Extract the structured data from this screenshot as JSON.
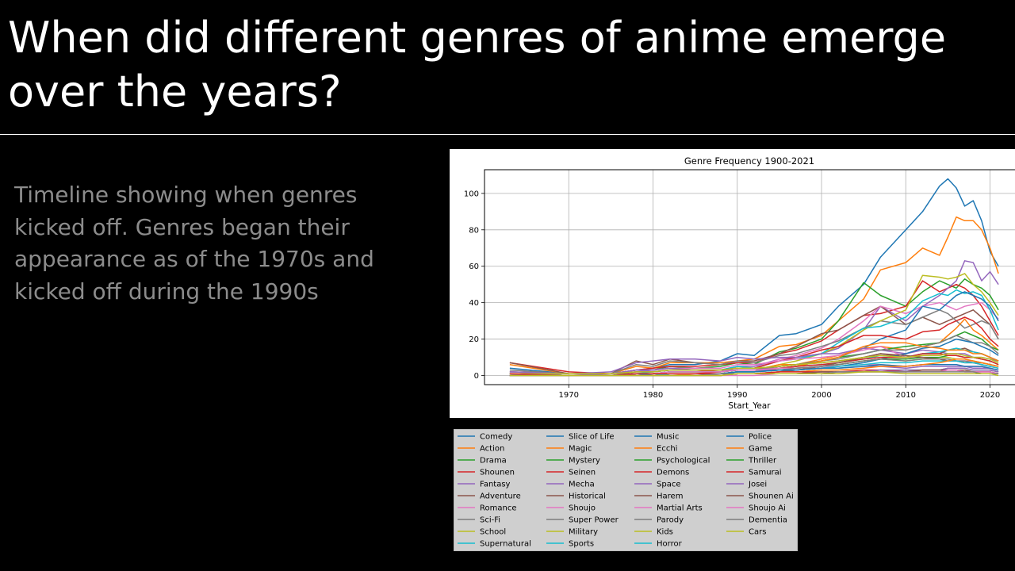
{
  "slide": {
    "title": "When did different genres of anime emerge over the years?",
    "description": "Timeline showing when genres kicked off. Genres began their appearance as of the 1970s and kicked off during the 1990s"
  },
  "chart_data": {
    "type": "line",
    "title": "Genre Frequency 1900-2021",
    "xlabel": "Start_Year",
    "ylabel": "",
    "xlim": [
      1960,
      2024
    ],
    "ylim": [
      -5,
      113
    ],
    "xticks": [
      1970,
      1980,
      1990,
      2000,
      2010,
      2020
    ],
    "yticks": [
      0,
      20,
      40,
      60,
      80,
      100
    ],
    "grid": true,
    "legend_position": "below",
    "legend_columns": 4,
    "x": [
      1963,
      1970,
      1975,
      1978,
      1980,
      1982,
      1985,
      1988,
      1990,
      1992,
      1995,
      1997,
      2000,
      2002,
      2005,
      2007,
      2010,
      2012,
      2014,
      2015,
      2016,
      2017,
      2018,
      2019,
      2020,
      2021
    ],
    "series": [
      {
        "name": "Comedy",
        "color": "#1f77b4",
        "values": [
          4,
          1,
          1,
          3,
          4,
          6,
          6,
          8,
          12,
          11,
          22,
          23,
          28,
          38,
          50,
          65,
          80,
          90,
          104,
          108,
          103,
          93,
          96,
          85,
          68,
          60
        ]
      },
      {
        "name": "Action",
        "color": "#ff7f0e",
        "values": [
          6,
          1,
          1,
          5,
          4,
          7,
          7,
          7,
          8,
          9,
          16,
          17,
          22,
          30,
          42,
          58,
          62,
          70,
          66,
          76,
          87,
          85,
          85,
          80,
          70,
          56
        ]
      },
      {
        "name": "Drama",
        "color": "#2ca02c",
        "values": [
          2,
          1,
          1,
          3,
          3,
          5,
          4,
          5,
          7,
          6,
          13,
          15,
          20,
          30,
          51,
          44,
          38,
          46,
          52,
          50,
          48,
          53,
          50,
          48,
          44,
          36
        ]
      },
      {
        "name": "Shounen",
        "color": "#d62728",
        "values": [
          7,
          2,
          1,
          3,
          4,
          5,
          5,
          6,
          7,
          7,
          12,
          14,
          19,
          25,
          33,
          34,
          38,
          52,
          46,
          48,
          50,
          48,
          44,
          38,
          30,
          22
        ]
      },
      {
        "name": "Fantasy",
        "color": "#9467bd",
        "values": [
          2,
          1,
          1,
          2,
          3,
          4,
          3,
          3,
          5,
          5,
          9,
          10,
          12,
          15,
          25,
          38,
          30,
          38,
          44,
          48,
          52,
          63,
          62,
          52,
          57,
          50
        ]
      },
      {
        "name": "Adventure",
        "color": "#8c564b",
        "values": [
          7,
          1,
          1,
          8,
          6,
          9,
          7,
          6,
          8,
          8,
          12,
          16,
          23,
          25,
          33,
          38,
          28,
          32,
          28,
          30,
          32,
          34,
          36,
          32,
          28,
          20
        ]
      },
      {
        "name": "Romance",
        "color": "#e377c2",
        "values": [
          2,
          1,
          1,
          2,
          2,
          3,
          3,
          3,
          4,
          4,
          9,
          11,
          15,
          20,
          30,
          38,
          34,
          38,
          40,
          38,
          36,
          38,
          39,
          40,
          36,
          31
        ]
      },
      {
        "name": "Sci-Fi",
        "color": "#7f7f7f",
        "values": [
          3,
          1,
          1,
          6,
          5,
          8,
          7,
          6,
          8,
          7,
          11,
          12,
          16,
          19,
          26,
          30,
          28,
          32,
          36,
          34,
          30,
          26,
          28,
          30,
          28,
          20
        ]
      },
      {
        "name": "School",
        "color": "#bcbd22",
        "values": [
          1,
          0,
          0,
          1,
          1,
          2,
          2,
          2,
          3,
          3,
          6,
          8,
          12,
          16,
          25,
          30,
          36,
          55,
          54,
          53,
          54,
          56,
          50,
          46,
          40,
          33
        ]
      },
      {
        "name": "Supernatural",
        "color": "#17becf",
        "values": [
          1,
          0,
          0,
          1,
          2,
          3,
          3,
          3,
          5,
          4,
          8,
          9,
          12,
          18,
          26,
          27,
          32,
          41,
          45,
          44,
          47,
          45,
          46,
          44,
          36,
          25
        ]
      },
      {
        "name": "Slice of Life",
        "color": "#1f77b4",
        "values": [
          1,
          0,
          0,
          1,
          1,
          1,
          1,
          1,
          2,
          2,
          4,
          5,
          8,
          10,
          15,
          20,
          25,
          38,
          36,
          40,
          44,
          46,
          44,
          42,
          38,
          30
        ]
      },
      {
        "name": "Magic",
        "color": "#ff7f0e",
        "values": [
          1,
          0,
          0,
          1,
          1,
          2,
          2,
          2,
          3,
          3,
          6,
          6,
          9,
          11,
          15,
          16,
          14,
          16,
          18,
          22,
          26,
          31,
          25,
          22,
          18,
          14
        ]
      },
      {
        "name": "Mystery",
        "color": "#2ca02c",
        "values": [
          1,
          0,
          0,
          1,
          1,
          2,
          2,
          2,
          3,
          3,
          5,
          6,
          8,
          10,
          12,
          14,
          16,
          17,
          18,
          20,
          22,
          24,
          22,
          20,
          16,
          14
        ]
      },
      {
        "name": "Seinen",
        "color": "#d62728",
        "values": [
          0,
          0,
          0,
          1,
          1,
          2,
          2,
          3,
          4,
          4,
          8,
          10,
          14,
          16,
          22,
          22,
          20,
          24,
          25,
          28,
          30,
          32,
          30,
          26,
          20,
          16
        ]
      },
      {
        "name": "Mecha",
        "color": "#9467bd",
        "values": [
          2,
          1,
          2,
          7,
          8,
          9,
          9,
          8,
          10,
          9,
          10,
          10,
          12,
          12,
          15,
          14,
          12,
          14,
          13,
          12,
          12,
          12,
          10,
          10,
          9,
          8
        ]
      },
      {
        "name": "Historical",
        "color": "#8c564b",
        "values": [
          1,
          0,
          0,
          2,
          2,
          3,
          3,
          3,
          4,
          4,
          5,
          6,
          7,
          8,
          10,
          12,
          10,
          12,
          12,
          14,
          14,
          15,
          13,
          12,
          10,
          8
        ]
      },
      {
        "name": "Shoujo",
        "color": "#e377c2",
        "values": [
          1,
          0,
          1,
          3,
          3,
          4,
          4,
          4,
          6,
          6,
          8,
          9,
          10,
          11,
          14,
          16,
          10,
          10,
          9,
          9,
          8,
          8,
          8,
          7,
          6,
          5
        ]
      },
      {
        "name": "Super Power",
        "color": "#7f7f7f",
        "values": [
          1,
          0,
          0,
          1,
          1,
          2,
          2,
          2,
          3,
          3,
          5,
          6,
          8,
          9,
          12,
          14,
          14,
          16,
          18,
          20,
          22,
          20,
          18,
          18,
          16,
          12
        ]
      },
      {
        "name": "Military",
        "color": "#bcbd22",
        "values": [
          1,
          0,
          0,
          1,
          1,
          2,
          2,
          2,
          3,
          3,
          4,
          4,
          5,
          6,
          8,
          9,
          8,
          9,
          10,
          10,
          9,
          9,
          8,
          7,
          6,
          5
        ]
      },
      {
        "name": "Sports",
        "color": "#17becf",
        "values": [
          1,
          0,
          0,
          1,
          1,
          2,
          2,
          2,
          3,
          3,
          4,
          5,
          6,
          7,
          9,
          11,
          10,
          12,
          13,
          14,
          15,
          14,
          13,
          12,
          10,
          8
        ]
      },
      {
        "name": "Music",
        "color": "#1f77b4",
        "values": [
          0,
          0,
          0,
          0,
          0,
          1,
          1,
          1,
          1,
          1,
          2,
          3,
          4,
          5,
          7,
          9,
          12,
          15,
          16,
          18,
          20,
          19,
          18,
          16,
          14,
          11
        ]
      },
      {
        "name": "Ecchi",
        "color": "#ff7f0e",
        "values": [
          0,
          0,
          0,
          0,
          0,
          0,
          1,
          1,
          2,
          2,
          4,
          5,
          8,
          10,
          16,
          18,
          18,
          16,
          15,
          14,
          14,
          14,
          12,
          12,
          10,
          8
        ]
      },
      {
        "name": "Psychological",
        "color": "#2ca02c",
        "values": [
          0,
          0,
          0,
          0,
          0,
          1,
          1,
          1,
          2,
          2,
          3,
          4,
          5,
          6,
          8,
          9,
          9,
          10,
          10,
          11,
          11,
          10,
          10,
          9,
          8,
          6
        ]
      },
      {
        "name": "Demons",
        "color": "#d62728",
        "values": [
          0,
          0,
          0,
          0,
          1,
          1,
          1,
          2,
          3,
          3,
          4,
          5,
          6,
          7,
          9,
          10,
          10,
          12,
          12,
          11,
          11,
          10,
          10,
          9,
          8,
          6
        ]
      },
      {
        "name": "Space",
        "color": "#9467bd",
        "values": [
          1,
          0,
          1,
          3,
          3,
          4,
          3,
          3,
          3,
          3,
          3,
          3,
          4,
          4,
          5,
          5,
          4,
          5,
          5,
          5,
          5,
          5,
          4,
          4,
          4,
          3
        ]
      },
      {
        "name": "Harem",
        "color": "#8c564b",
        "values": [
          0,
          0,
          0,
          0,
          0,
          0,
          0,
          0,
          1,
          1,
          2,
          3,
          5,
          7,
          10,
          12,
          11,
          10,
          9,
          8,
          8,
          7,
          7,
          6,
          5,
          4
        ]
      },
      {
        "name": "Martial Arts",
        "color": "#e377c2",
        "values": [
          0,
          0,
          0,
          1,
          1,
          2,
          2,
          2,
          3,
          3,
          4,
          4,
          5,
          5,
          6,
          6,
          5,
          6,
          6,
          6,
          6,
          5,
          5,
          5,
          4,
          3
        ]
      },
      {
        "name": "Parody",
        "color": "#7f7f7f",
        "values": [
          0,
          0,
          0,
          0,
          1,
          1,
          1,
          1,
          2,
          2,
          3,
          4,
          5,
          6,
          8,
          9,
          8,
          9,
          9,
          9,
          8,
          8,
          7,
          7,
          6,
          5
        ]
      },
      {
        "name": "Kids",
        "color": "#bcbd22",
        "values": [
          1,
          1,
          1,
          2,
          2,
          3,
          3,
          3,
          4,
          4,
          5,
          6,
          7,
          8,
          10,
          11,
          10,
          11,
          11,
          12,
          12,
          11,
          10,
          10,
          9,
          7
        ]
      },
      {
        "name": "Horror",
        "color": "#17becf",
        "values": [
          0,
          0,
          0,
          0,
          0,
          1,
          1,
          1,
          2,
          2,
          3,
          3,
          4,
          5,
          6,
          7,
          7,
          8,
          8,
          8,
          8,
          7,
          7,
          6,
          5,
          4
        ]
      },
      {
        "name": "Police",
        "color": "#1f77b4",
        "values": [
          0,
          0,
          0,
          0,
          1,
          1,
          1,
          1,
          2,
          2,
          3,
          3,
          4,
          4,
          5,
          6,
          5,
          6,
          6,
          6,
          6,
          5,
          5,
          5,
          4,
          3
        ]
      },
      {
        "name": "Game",
        "color": "#ff7f0e",
        "values": [
          0,
          0,
          0,
          0,
          0,
          0,
          0,
          0,
          1,
          1,
          2,
          2,
          3,
          3,
          4,
          5,
          5,
          6,
          7,
          8,
          9,
          9,
          8,
          7,
          6,
          5
        ]
      },
      {
        "name": "Thriller",
        "color": "#2ca02c",
        "values": [
          0,
          0,
          0,
          0,
          0,
          0,
          0,
          0,
          1,
          1,
          1,
          1,
          2,
          2,
          2,
          3,
          3,
          3,
          3,
          4,
          4,
          4,
          3,
          3,
          3,
          2
        ]
      },
      {
        "name": "Samurai",
        "color": "#d62728",
        "values": [
          1,
          0,
          0,
          1,
          1,
          1,
          1,
          1,
          1,
          1,
          2,
          2,
          2,
          2,
          3,
          3,
          2,
          3,
          3,
          3,
          3,
          2,
          2,
          2,
          2,
          1
        ]
      },
      {
        "name": "Josei",
        "color": "#9467bd",
        "values": [
          0,
          0,
          0,
          0,
          0,
          0,
          0,
          1,
          1,
          1,
          1,
          1,
          2,
          2,
          2,
          3,
          3,
          3,
          3,
          4,
          4,
          4,
          3,
          3,
          3,
          2
        ]
      },
      {
        "name": "Shounen Ai",
        "color": "#8c564b",
        "values": [
          0,
          0,
          0,
          0,
          0,
          0,
          0,
          0,
          1,
          1,
          1,
          1,
          2,
          2,
          2,
          2,
          2,
          3,
          3,
          3,
          3,
          3,
          2,
          2,
          2,
          1
        ]
      },
      {
        "name": "Shoujo Ai",
        "color": "#e377c2",
        "values": [
          0,
          0,
          0,
          0,
          0,
          0,
          0,
          0,
          0,
          0,
          1,
          1,
          1,
          2,
          2,
          2,
          2,
          2,
          2,
          3,
          3,
          2,
          2,
          2,
          2,
          1
        ]
      },
      {
        "name": "Dementia",
        "color": "#7f7f7f",
        "values": [
          0,
          0,
          0,
          0,
          0,
          0,
          0,
          1,
          1,
          1,
          1,
          1,
          1,
          2,
          2,
          2,
          2,
          2,
          2,
          2,
          2,
          2,
          2,
          1,
          1,
          1
        ]
      },
      {
        "name": "Cars",
        "color": "#bcbd22",
        "values": [
          0,
          0,
          0,
          0,
          0,
          0,
          0,
          0,
          1,
          1,
          1,
          1,
          1,
          1,
          2,
          2,
          1,
          1,
          1,
          1,
          1,
          1,
          1,
          1,
          1,
          0
        ]
      }
    ]
  }
}
